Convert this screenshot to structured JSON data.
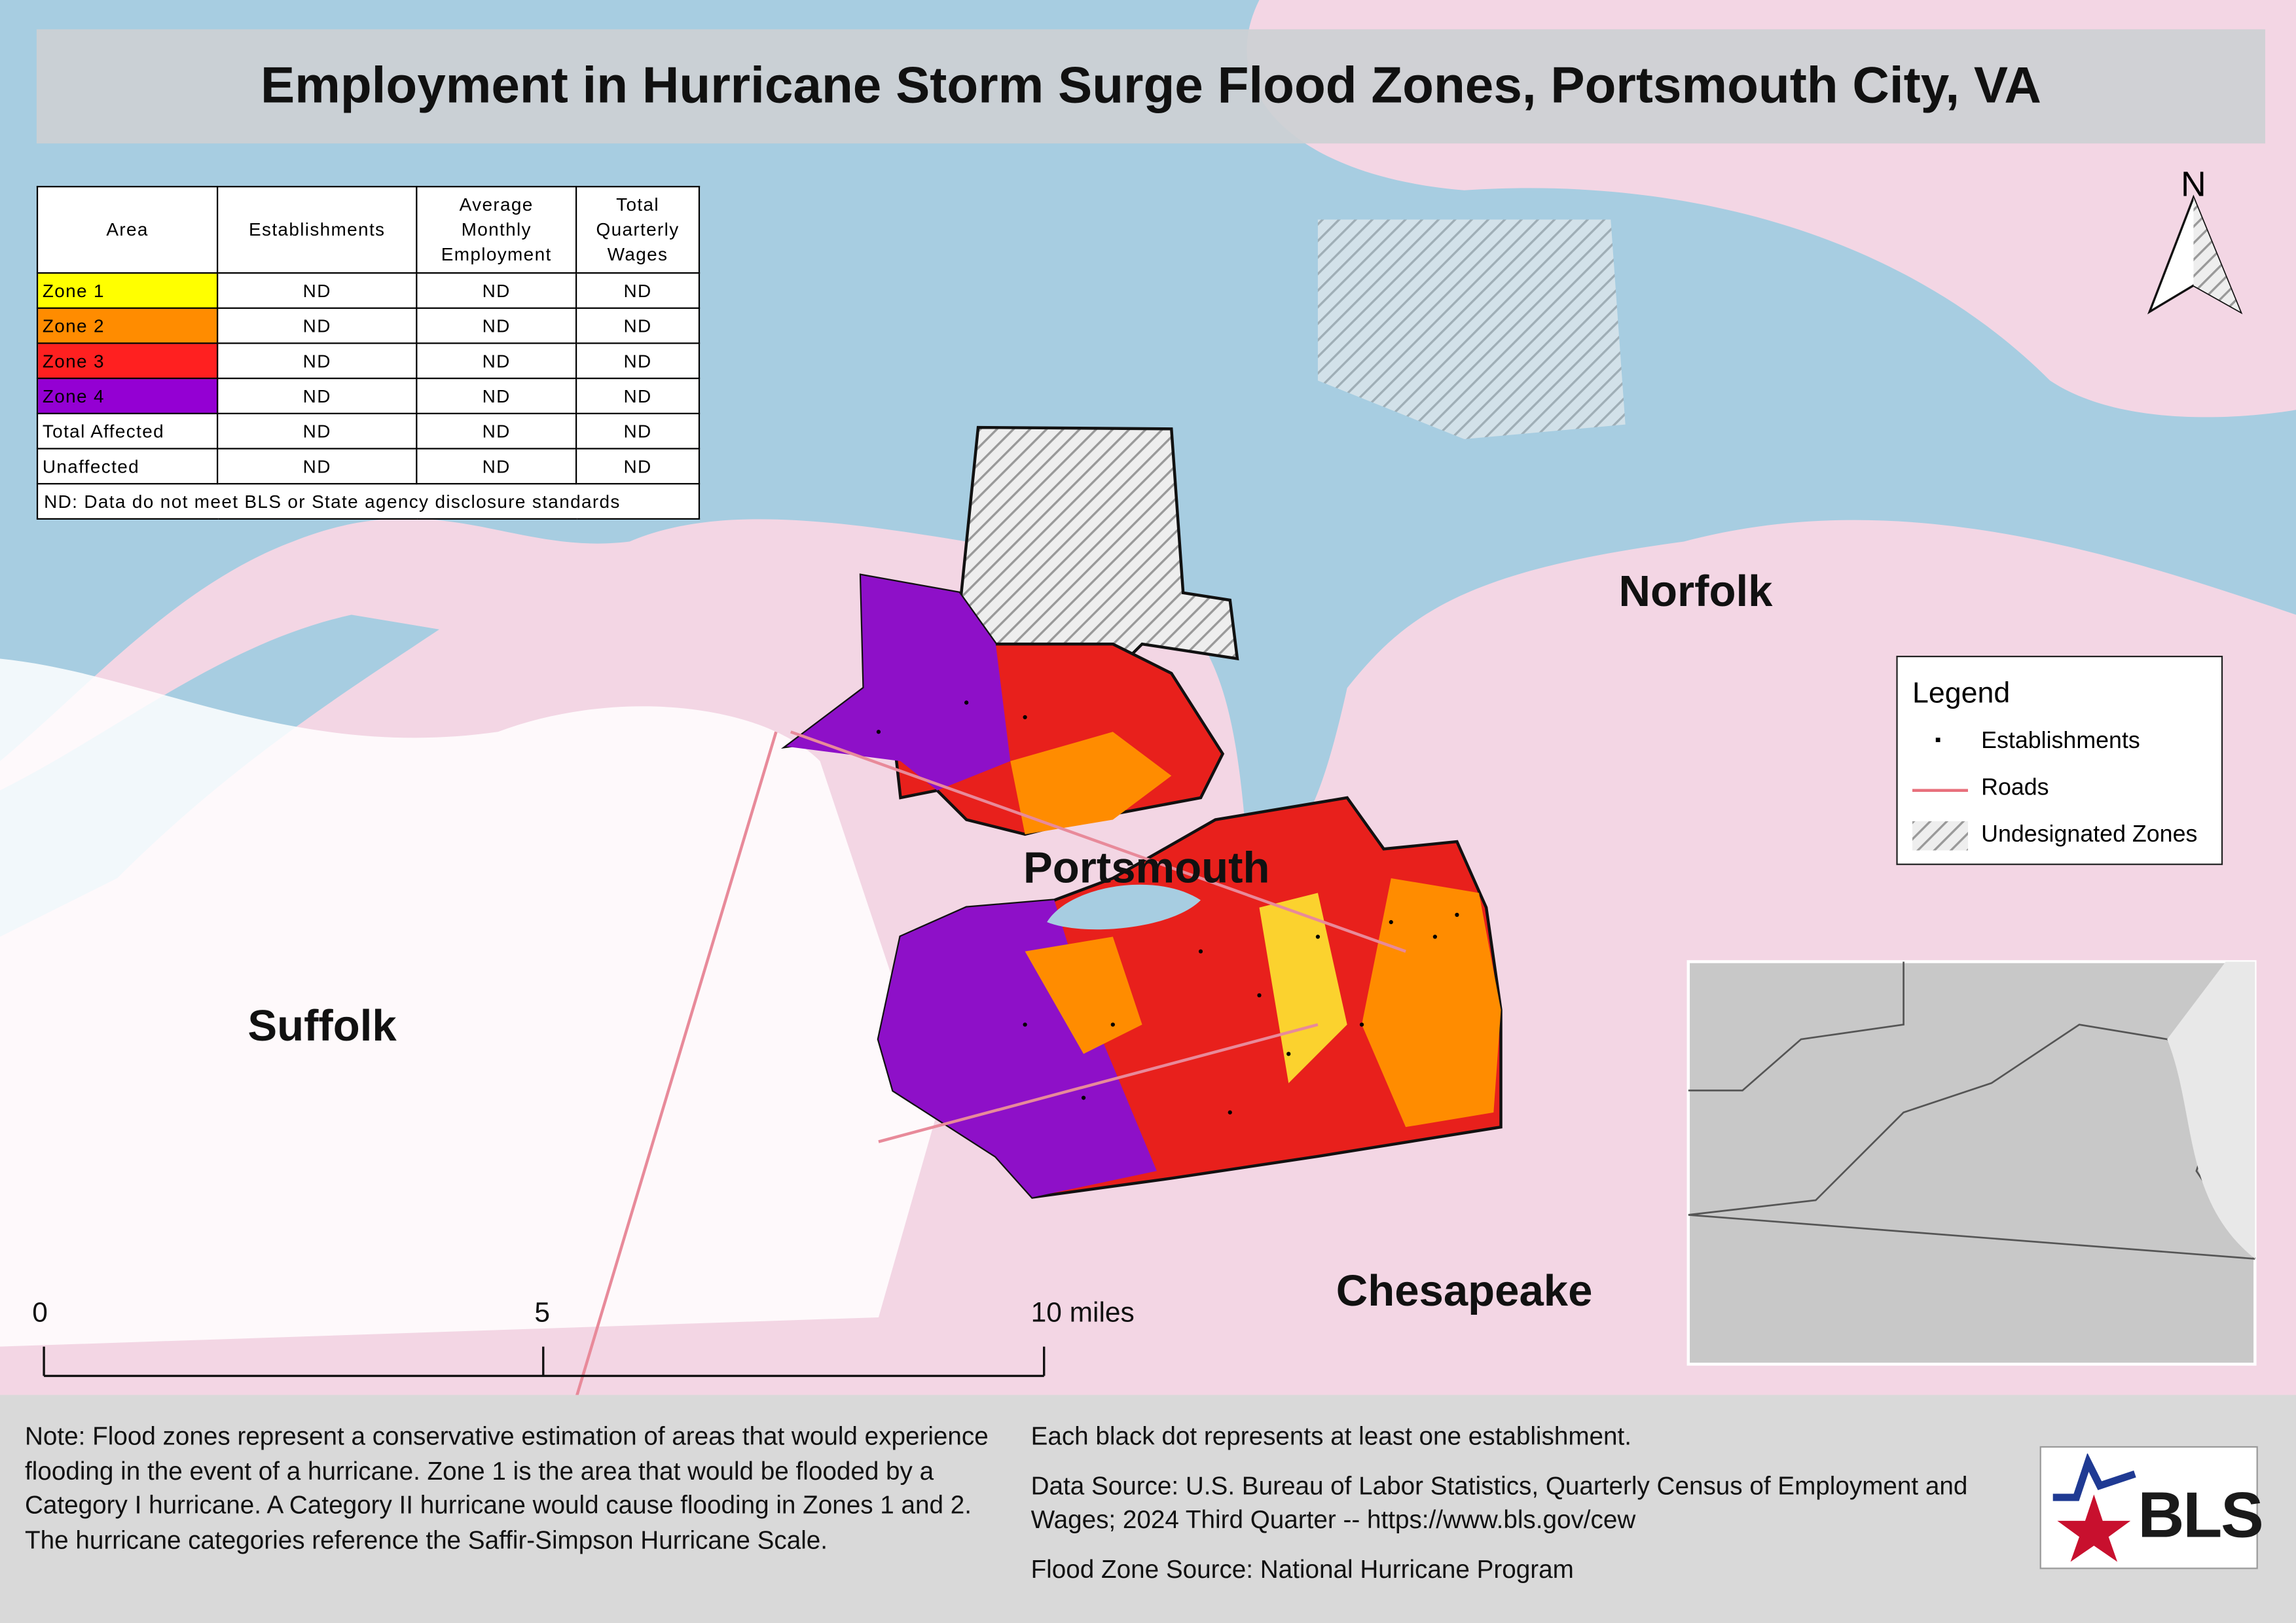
{
  "title": "Employment in Hurricane Storm Surge Flood Zones, Portsmouth City, VA",
  "table": {
    "headers": [
      [
        "Area"
      ],
      [
        "Establishments"
      ],
      [
        "Average",
        "Monthly",
        "Employment"
      ],
      [
        "Total",
        "Quarterly",
        "Wages"
      ]
    ],
    "rows": [
      [
        "Zone 1",
        "ND",
        "ND",
        "ND"
      ],
      [
        "Zone 2",
        "ND",
        "ND",
        "ND"
      ],
      [
        "Zone 3",
        "ND",
        "ND",
        "ND"
      ],
      [
        "Zone 4",
        "ND",
        "ND",
        "ND"
      ],
      [
        "Total Affected",
        "ND",
        "ND",
        "ND"
      ],
      [
        "Unaffected",
        "ND",
        "ND",
        "ND"
      ]
    ],
    "row_colors": [
      "#ffff00",
      "#ff8c00",
      "#ff2020",
      "#9400d3",
      null,
      null
    ],
    "footnote": "ND: Data do not meet BLS or State agency disclosure standards"
  },
  "north": "N",
  "places": [
    "Norfolk",
    "Portsmouth",
    "Suffolk",
    "Chesapeake"
  ],
  "legend": {
    "title": "Legend",
    "items": [
      "Establishments",
      "Roads",
      "Undesignated Zones"
    ]
  },
  "scale_bar": [
    "0",
    "5",
    "10 miles"
  ],
  "notes": {
    "left": "Note: Flood zones represent a conservative estimation of areas that would experience flooding in the event of a hurricane. Zone 1 is the area that would be flooded by a Category I hurricane. A Category II hurricane would cause flooding in Zones 1 and 2. The hurricane categories reference the Saffir-Simpson Hurricane Scale.",
    "right": [
      "Each black dot represents at least one establishment.",
      "Data Source: U.S. Bureau of Labor Statistics, Quarterly Census of Employment and Wages; 2024 Third Quarter -- https://www.bls.gov/cew",
      "Flood Zone Source: National Hurricane Program"
    ]
  },
  "logo": "BLS"
}
